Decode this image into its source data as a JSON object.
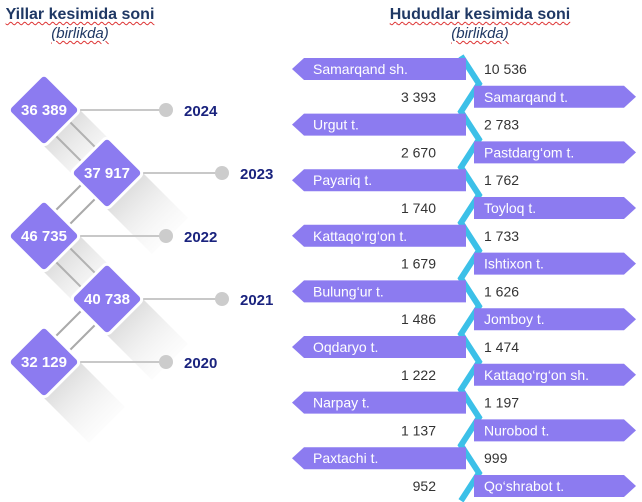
{
  "years_panel": {
    "title": "Yillar kesimida soni",
    "subtitle": "(birlikda)"
  },
  "regions_panel": {
    "title": "Hududlar kesimida soni",
    "subtitle": "(birlikda)"
  },
  "colors": {
    "bar": "#8c7bf0",
    "diamond": "#8c7bf0",
    "divider": "#3cc0e8",
    "title": "#1f3864",
    "year_label": "#1a237e"
  },
  "chart_data": [
    {
      "type": "bar",
      "title": "Yillar kesimida soni",
      "subtitle": "(birlikda)",
      "categories": [
        "2024",
        "2023",
        "2022",
        "2021",
        "2020"
      ],
      "values": [
        36389,
        37917,
        46735,
        40738,
        32129
      ],
      "display_values": [
        "36 389",
        "37 917",
        "46 735",
        "40 738",
        "32 129"
      ]
    },
    {
      "type": "bar",
      "title": "Hududlar kesimida soni",
      "subtitle": "(birlikda)",
      "categories": [
        "Samarqand sh.",
        "Samarqand t.",
        "Urgut t.",
        "Pastdarg‘om t.",
        "Payariq t.",
        "Toyloq t.",
        "Kattaqo‘rg‘on t.",
        "Ishtixon t.",
        "Bulung‘ur t.",
        "Jomboy t.",
        "Oqdaryo t.",
        "Kattaqo‘rg‘on sh.",
        "Narpay t.",
        "Nurobod t.",
        "Paxtachi t.",
        "Qo‘shrabot t."
      ],
      "values": [
        10536,
        3393,
        2783,
        2670,
        1762,
        1740,
        1733,
        1679,
        1626,
        1486,
        1474,
        1222,
        1197,
        1137,
        999,
        952
      ],
      "display_values": [
        "10 536",
        "3 393",
        "2 783",
        "2 670",
        "1 762",
        "1 740",
        "1 733",
        "1 679",
        "1 626",
        "1 486",
        "1 474",
        "1 222",
        "1 197",
        "1 137",
        "999",
        "952"
      ]
    }
  ]
}
